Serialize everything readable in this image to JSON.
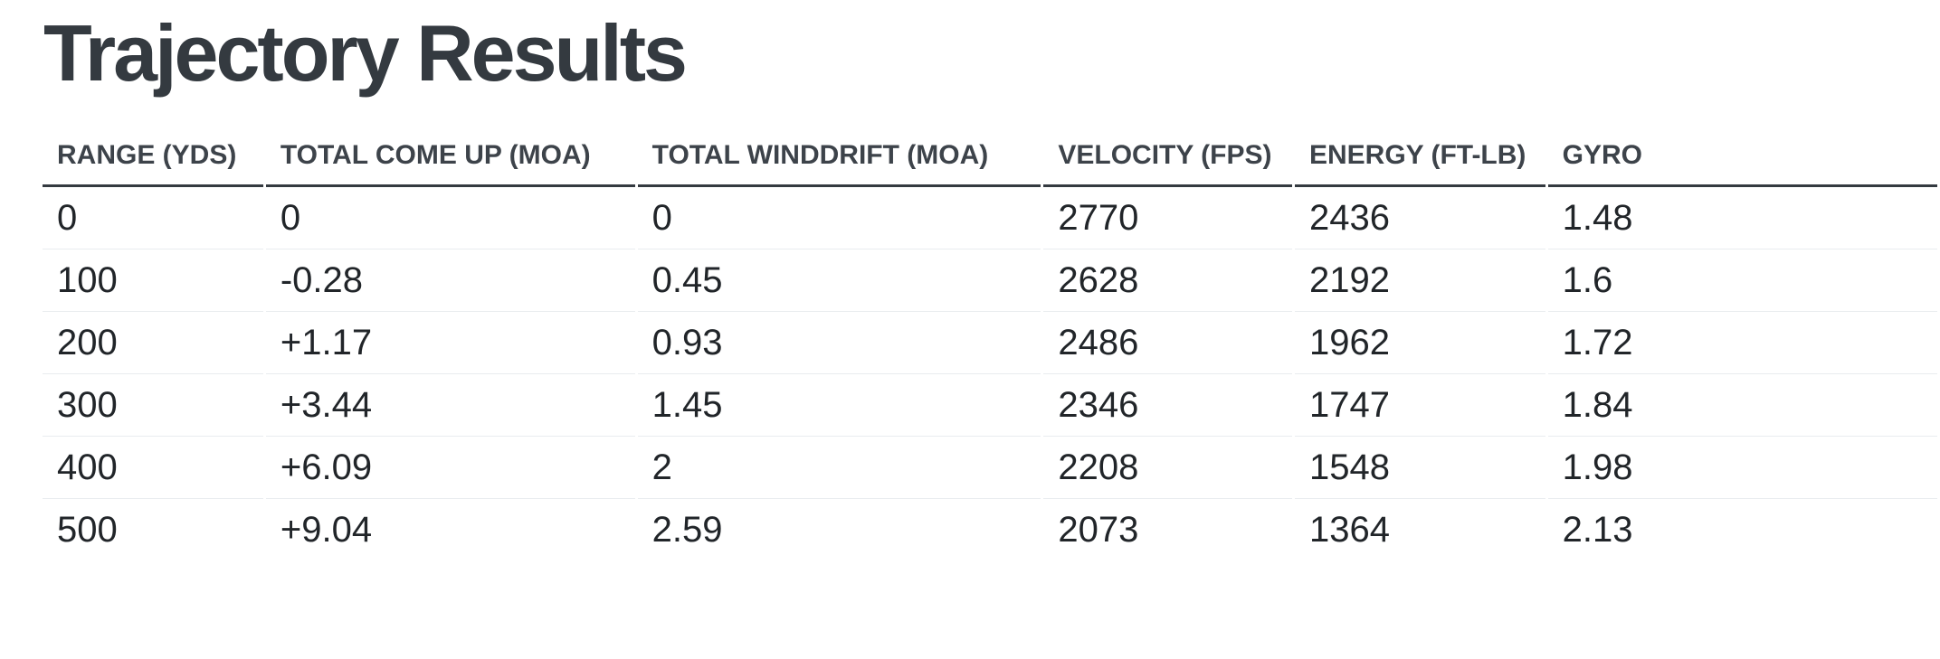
{
  "page": {
    "title": "Trajectory Results"
  },
  "table": {
    "columns": [
      {
        "key": "range",
        "label": "RANGE (YDS)"
      },
      {
        "key": "come_up",
        "label": "TOTAL COME UP (MOA)"
      },
      {
        "key": "winddrift",
        "label": "TOTAL WINDDRIFT (MOA)"
      },
      {
        "key": "velocity",
        "label": "VELOCITY (FPS)"
      },
      {
        "key": "energy",
        "label": "ENERGY (FT-LB)"
      },
      {
        "key": "gyro",
        "label": "GYRO"
      }
    ],
    "rows": [
      [
        "0",
        "0",
        "0",
        "2770",
        "2436",
        "1.48"
      ],
      [
        "100",
        "-0.28",
        "0.45",
        "2628",
        "2192",
        "1.6"
      ],
      [
        "200",
        "+1.17",
        "0.93",
        "2486",
        "1962",
        "1.72"
      ],
      [
        "300",
        "+3.44",
        "1.45",
        "2346",
        "1747",
        "1.84"
      ],
      [
        "400",
        "+6.09",
        "2",
        "2208",
        "1548",
        "1.98"
      ],
      [
        "500",
        "+9.04",
        "2.59",
        "2073",
        "1364",
        "2.13"
      ]
    ]
  },
  "colors": {
    "title_text": "#343a40",
    "header_text": "#3d434a",
    "body_text": "#212529",
    "header_border": "#343a40",
    "row_border": "#e9ecef",
    "background": "#ffffff"
  }
}
